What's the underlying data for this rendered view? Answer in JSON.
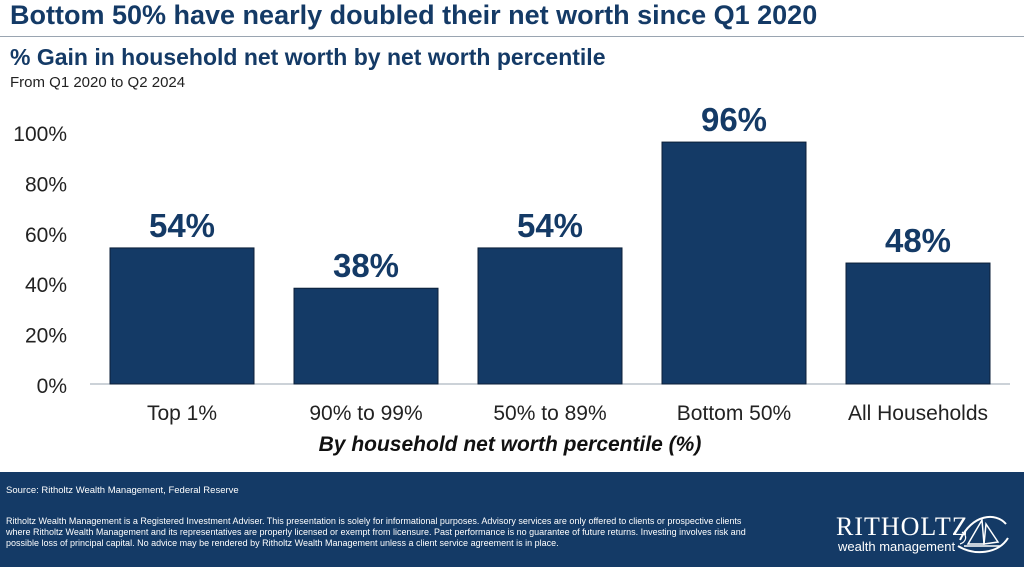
{
  "headline": "Bottom 50% have nearly doubled their net worth since Q1 2020",
  "subtitle": "% Gain in household net worth by net worth percentile",
  "period": "From Q1 2020 to Q2 2024",
  "chart_data": {
    "type": "bar",
    "categories": [
      "Top 1%",
      "90% to 99%",
      "50% to 89%",
      "Bottom 50%",
      "All Households"
    ],
    "values": [
      54,
      38,
      54,
      96,
      48
    ],
    "value_labels": [
      "54%",
      "38%",
      "54%",
      "96%",
      "48%"
    ],
    "y_ticks": [
      0,
      20,
      40,
      60,
      80,
      100
    ],
    "y_tick_labels": [
      "0%",
      "20%",
      "40%",
      "60%",
      "80%",
      "100%"
    ],
    "ylim": [
      0,
      100
    ],
    "xlabel": "By household net worth percentile (%)",
    "ylabel": "",
    "grid": false,
    "legend": "none",
    "bar_color": "#143a66"
  },
  "footer": {
    "source": "Source: Ritholtz Wealth Management, Federal Reserve",
    "disclaimer": "Ritholtz Wealth Management is a Registered Investment Adviser. This presentation is solely for informational purposes. Advisory services are only offered to clients or prospective clients where Ritholtz Wealth Management and its representatives are properly licensed or exempt from licensure. Past performance is no guarantee of future returns. Investing involves risk and possible loss of principal capital. No advice may be rendered by Ritholtz Wealth Management unless a client service agreement is in place.",
    "logo_name": "RITHOLTZ",
    "logo_sub": "wealth management",
    "logo_icon": "ship-emblem-icon"
  },
  "colors": {
    "brand_navy": "#143a66",
    "axis": "#9aa5b1"
  }
}
